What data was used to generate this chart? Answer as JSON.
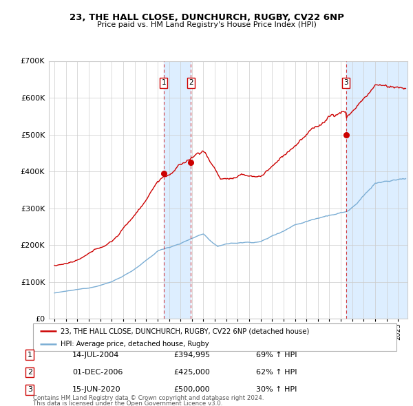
{
  "title_line1": "23, THE HALL CLOSE, DUNCHURCH, RUGBY, CV22 6NP",
  "title_line2": "Price paid vs. HM Land Registry's House Price Index (HPI)",
  "ylim": [
    0,
    700000
  ],
  "yticks": [
    0,
    100000,
    200000,
    300000,
    400000,
    500000,
    600000,
    700000
  ],
  "ytick_labels": [
    "£0",
    "£100K",
    "£200K",
    "£300K",
    "£400K",
    "£500K",
    "£600K",
    "£700K"
  ],
  "xlim_start": 1994.5,
  "xlim_end": 2025.8,
  "purchases": [
    {
      "num": 1,
      "date": "14-JUL-2004",
      "price": 394995,
      "year": 2004.54,
      "pct": "69%",
      "dir": "↑"
    },
    {
      "num": 2,
      "date": "01-DEC-2006",
      "price": 425000,
      "year": 2006.92,
      "pct": "62%",
      "dir": "↑"
    },
    {
      "num": 3,
      "date": "15-JUN-2020",
      "price": 500000,
      "year": 2020.46,
      "pct": "30%",
      "dir": "↑"
    }
  ],
  "legend_label_red": "23, THE HALL CLOSE, DUNCHURCH, RUGBY, CV22 6NP (detached house)",
  "legend_label_blue": "HPI: Average price, detached house, Rugby",
  "footnote_line1": "Contains HM Land Registry data © Crown copyright and database right 2024.",
  "footnote_line2": "This data is licensed under the Open Government Licence v3.0.",
  "red_color": "#cc0000",
  "blue_color": "#7aadd4",
  "shade_color": "#ddeeff",
  "grid_color": "#cccccc",
  "bg_color": "#ffffff"
}
